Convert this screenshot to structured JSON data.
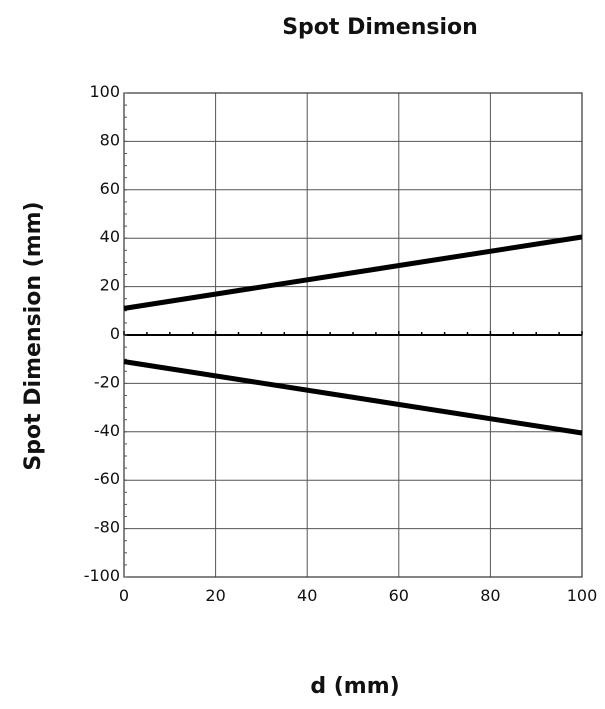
{
  "chart_data": {
    "type": "line",
    "title": "Spot Dimension",
    "xlabel": "d (mm)",
    "ylabel": "Spot Dimension (mm)",
    "xlim": [
      0,
      100
    ],
    "ylim": [
      -100,
      100
    ],
    "x_ticks": [
      0,
      20,
      40,
      60,
      80,
      100
    ],
    "y_ticks": [
      100,
      80,
      60,
      40,
      20,
      0,
      -20,
      -40,
      -60,
      -80,
      -100
    ],
    "grid": true,
    "legend": "none",
    "series": [
      {
        "x": [
          0,
          100
        ],
        "y": [
          11,
          40.5
        ],
        "color": "#000000"
      },
      {
        "x": [
          0,
          100
        ],
        "y": [
          -11,
          -40.5
        ],
        "color": "#000000"
      }
    ]
  }
}
